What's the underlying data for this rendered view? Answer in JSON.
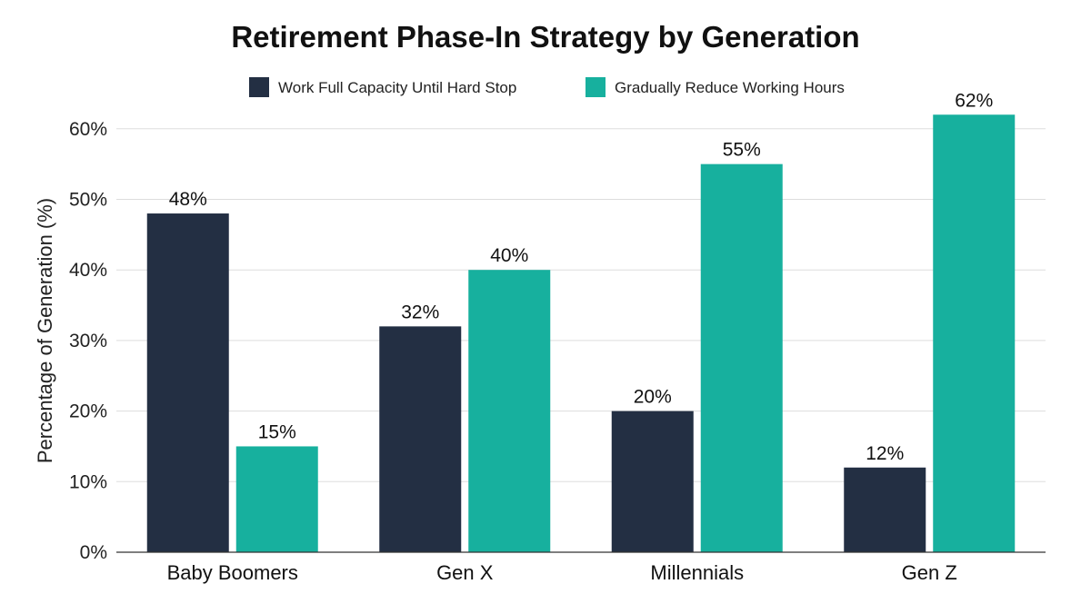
{
  "chart_data": {
    "type": "bar",
    "title": "Retirement Phase-In Strategy by Generation",
    "ylabel": "Percentage of Generation (%)",
    "xlabel": "",
    "categories": [
      "Baby Boomers",
      "Gen X",
      "Millennials",
      "Gen Z"
    ],
    "series": [
      {
        "name": "Work Full Capacity Until Hard Stop",
        "color": "#232f43",
        "values": [
          48,
          32,
          20,
          12
        ]
      },
      {
        "name": "Gradually Reduce Working Hours",
        "color": "#17b09e",
        "values": [
          15,
          40,
          55,
          62
        ]
      }
    ],
    "ylim": [
      0,
      65
    ],
    "yticks": [
      0,
      10,
      20,
      30,
      40,
      50,
      60
    ],
    "grid": true,
    "legend": "top-center",
    "value_suffix": "%"
  }
}
